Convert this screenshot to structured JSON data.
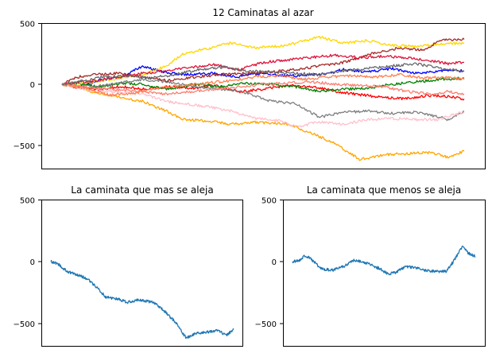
{
  "chart_data": [
    {
      "type": "line",
      "title": "12 Caminatas al azar",
      "ylim": [
        -690,
        500
      ],
      "x_range": [
        0,
        1000
      ],
      "yticks": [
        500,
        0,
        -500
      ],
      "ytick_labels": [
        "500",
        "0",
        "−500"
      ],
      "xticks_visible": false,
      "grid": false,
      "series": [
        {
          "color": "#0000ff",
          "anchors": [
            [
              0,
              0
            ],
            [
              40,
              -20
            ],
            [
              90,
              30
            ],
            [
              150,
              60
            ],
            [
              200,
              150
            ],
            [
              240,
              110
            ],
            [
              300,
              80
            ],
            [
              380,
              90
            ],
            [
              430,
              60
            ],
            [
              500,
              90
            ],
            [
              560,
              70
            ],
            [
              640,
              80
            ],
            [
              700,
              120
            ],
            [
              760,
              100
            ],
            [
              820,
              130
            ],
            [
              880,
              90
            ],
            [
              940,
              110
            ],
            [
              1000,
              110
            ]
          ]
        },
        {
          "color": "#ff0000",
          "anchors": [
            [
              0,
              0
            ],
            [
              40,
              -30
            ],
            [
              90,
              -40
            ],
            [
              150,
              -20
            ],
            [
              200,
              -40
            ],
            [
              260,
              -20
            ],
            [
              330,
              -30
            ],
            [
              380,
              -10
            ],
            [
              440,
              -60
            ],
            [
              500,
              -40
            ],
            [
              560,
              -10
            ],
            [
              640,
              -30
            ],
            [
              700,
              -70
            ],
            [
              780,
              -100
            ],
            [
              850,
              -120
            ],
            [
              920,
              -90
            ],
            [
              960,
              -100
            ],
            [
              1000,
              -120
            ]
          ]
        },
        {
          "color": "#008000",
          "anchors": [
            [
              0,
              0
            ],
            [
              40,
              10
            ],
            [
              90,
              -20
            ],
            [
              150,
              10
            ],
            [
              200,
              0
            ],
            [
              260,
              -40
            ],
            [
              330,
              0
            ],
            [
              400,
              -20
            ],
            [
              440,
              10
            ],
            [
              520,
              0
            ],
            [
              580,
              -20
            ],
            [
              640,
              -60
            ],
            [
              700,
              -40
            ],
            [
              760,
              -30
            ],
            [
              820,
              0
            ],
            [
              880,
              20
            ],
            [
              940,
              40
            ],
            [
              1000,
              50
            ]
          ]
        },
        {
          "color": "#ffd700",
          "anchors": [
            [
              0,
              0
            ],
            [
              60,
              10
            ],
            [
              120,
              40
            ],
            [
              200,
              80
            ],
            [
              260,
              150
            ],
            [
              300,
              250
            ],
            [
              360,
              290
            ],
            [
              420,
              340
            ],
            [
              480,
              300
            ],
            [
              560,
              320
            ],
            [
              640,
              390
            ],
            [
              700,
              340
            ],
            [
              760,
              360
            ],
            [
              820,
              320
            ],
            [
              880,
              310
            ],
            [
              940,
              330
            ],
            [
              1000,
              340
            ]
          ]
        },
        {
          "color": "#ffa500",
          "anchors": [
            [
              0,
              0
            ],
            [
              40,
              -20
            ],
            [
              90,
              -80
            ],
            [
              150,
              -110
            ],
            [
              200,
              -140
            ],
            [
              260,
              -220
            ],
            [
              300,
              -290
            ],
            [
              360,
              -300
            ],
            [
              420,
              -330
            ],
            [
              480,
              -310
            ],
            [
              560,
              -330
            ],
            [
              620,
              -400
            ],
            [
              680,
              -490
            ],
            [
              740,
              -620
            ],
            [
              800,
              -580
            ],
            [
              860,
              -570
            ],
            [
              920,
              -560
            ],
            [
              960,
              -600
            ],
            [
              1000,
              -550
            ]
          ]
        },
        {
          "color": "#808080",
          "anchors": [
            [
              0,
              0
            ],
            [
              60,
              -30
            ],
            [
              120,
              0
            ],
            [
              200,
              40
            ],
            [
              260,
              20
            ],
            [
              330,
              -20
            ],
            [
              400,
              -40
            ],
            [
              460,
              -70
            ],
            [
              520,
              -140
            ],
            [
              580,
              -160
            ],
            [
              640,
              -270
            ],
            [
              700,
              -230
            ],
            [
              760,
              -220
            ],
            [
              820,
              -240
            ],
            [
              880,
              -230
            ],
            [
              940,
              -270
            ],
            [
              960,
              -290
            ],
            [
              1000,
              -220
            ]
          ]
        },
        {
          "color": "#ffc0cb",
          "anchors": [
            [
              0,
              0
            ],
            [
              60,
              -40
            ],
            [
              120,
              -60
            ],
            [
              200,
              -80
            ],
            [
              260,
              -140
            ],
            [
              300,
              -160
            ],
            [
              360,
              -180
            ],
            [
              420,
              -220
            ],
            [
              480,
              -280
            ],
            [
              540,
              -300
            ],
            [
              580,
              -350
            ],
            [
              640,
              -310
            ],
            [
              700,
              -330
            ],
            [
              760,
              -290
            ],
            [
              820,
              -280
            ],
            [
              880,
              -290
            ],
            [
              940,
              -290
            ],
            [
              960,
              -260
            ],
            [
              1000,
              -230
            ]
          ]
        },
        {
          "color": "#a52a2a",
          "anchors": [
            [
              0,
              0
            ],
            [
              40,
              60
            ],
            [
              80,
              80
            ],
            [
              140,
              90
            ],
            [
              200,
              60
            ],
            [
              260,
              30
            ],
            [
              330,
              60
            ],
            [
              400,
              80
            ],
            [
              460,
              90
            ],
            [
              520,
              100
            ],
            [
              580,
              120
            ],
            [
              640,
              150
            ],
            [
              700,
              180
            ],
            [
              780,
              260
            ],
            [
              840,
              300
            ],
            [
              900,
              280
            ],
            [
              940,
              360
            ],
            [
              1000,
              370
            ]
          ]
        },
        {
          "color": "#dc143c",
          "anchors": [
            [
              0,
              0
            ],
            [
              60,
              20
            ],
            [
              120,
              50
            ],
            [
              200,
              90
            ],
            [
              260,
              110
            ],
            [
              320,
              140
            ],
            [
              380,
              160
            ],
            [
              440,
              120
            ],
            [
              500,
              180
            ],
            [
              560,
              200
            ],
            [
              620,
              220
            ],
            [
              680,
              240
            ],
            [
              740,
              220
            ],
            [
              800,
              230
            ],
            [
              860,
              220
            ],
            [
              920,
              190
            ],
            [
              960,
              170
            ],
            [
              1000,
              180
            ]
          ]
        },
        {
          "color": "#fa8072",
          "anchors": [
            [
              0,
              0
            ],
            [
              60,
              -20
            ],
            [
              120,
              -40
            ],
            [
              200,
              -60
            ],
            [
              260,
              -80
            ],
            [
              320,
              -60
            ],
            [
              380,
              -40
            ],
            [
              440,
              -20
            ],
            [
              500,
              0
            ],
            [
              560,
              10
            ],
            [
              620,
              20
            ],
            [
              680,
              0
            ],
            [
              740,
              -10
            ],
            [
              800,
              -20
            ],
            [
              860,
              -60
            ],
            [
              920,
              -80
            ],
            [
              960,
              -60
            ],
            [
              1000,
              -80
            ]
          ]
        },
        {
          "color": "#ff7f50",
          "anchors": [
            [
              0,
              0
            ],
            [
              60,
              -30
            ],
            [
              120,
              -90
            ],
            [
              180,
              -70
            ],
            [
              240,
              -30
            ],
            [
              300,
              -10
            ],
            [
              360,
              10
            ],
            [
              420,
              30
            ],
            [
              480,
              60
            ],
            [
              540,
              70
            ],
            [
              600,
              40
            ],
            [
              660,
              60
            ],
            [
              720,
              70
            ],
            [
              780,
              60
            ],
            [
              840,
              80
            ],
            [
              900,
              50
            ],
            [
              940,
              60
            ],
            [
              1000,
              40
            ]
          ]
        },
        {
          "color": "#696969",
          "anchors": [
            [
              0,
              0
            ],
            [
              60,
              30
            ],
            [
              100,
              60
            ],
            [
              160,
              70
            ],
            [
              220,
              50
            ],
            [
              280,
              80
            ],
            [
              340,
              120
            ],
            [
              400,
              140
            ],
            [
              460,
              110
            ],
            [
              520,
              100
            ],
            [
              580,
              90
            ],
            [
              640,
              80
            ],
            [
              700,
              110
            ],
            [
              760,
              130
            ],
            [
              820,
              150
            ],
            [
              880,
              170
            ],
            [
              940,
              130
            ],
            [
              1000,
              110
            ]
          ]
        }
      ]
    },
    {
      "type": "line",
      "title": "La caminata que mas se aleja",
      "ylim": [
        -690,
        500
      ],
      "x_range": [
        0,
        1000
      ],
      "yticks": [
        500,
        0,
        -500
      ],
      "ytick_labels": [
        "500",
        "0",
        "−500"
      ],
      "xticks_visible": false,
      "grid": false,
      "series": [
        {
          "color": "#1f77b4",
          "anchors": [
            [
              0,
              0
            ],
            [
              40,
              -20
            ],
            [
              90,
              -80
            ],
            [
              150,
              -110
            ],
            [
              200,
              -140
            ],
            [
              260,
              -220
            ],
            [
              300,
              -290
            ],
            [
              360,
              -300
            ],
            [
              420,
              -330
            ],
            [
              480,
              -310
            ],
            [
              560,
              -330
            ],
            [
              620,
              -400
            ],
            [
              680,
              -490
            ],
            [
              740,
              -620
            ],
            [
              800,
              -580
            ],
            [
              860,
              -570
            ],
            [
              920,
              -560
            ],
            [
              960,
              -600
            ],
            [
              1000,
              -550
            ]
          ]
        }
      ]
    },
    {
      "type": "line",
      "title": "La caminata que menos se aleja",
      "ylim": [
        -690,
        500
      ],
      "x_range": [
        0,
        1000
      ],
      "yticks": [
        500,
        0,
        -500
      ],
      "ytick_labels": [
        "500",
        "0",
        "−500"
      ],
      "xticks_visible": false,
      "grid": false,
      "series": [
        {
          "color": "#1f77b4",
          "anchors": [
            [
              0,
              0
            ],
            [
              40,
              10
            ],
            [
              70,
              50
            ],
            [
              100,
              20
            ],
            [
              160,
              -60
            ],
            [
              220,
              -70
            ],
            [
              280,
              -40
            ],
            [
              330,
              10
            ],
            [
              380,
              0
            ],
            [
              420,
              -20
            ],
            [
              480,
              -60
            ],
            [
              520,
              -100
            ],
            [
              560,
              -90
            ],
            [
              620,
              -40
            ],
            [
              680,
              -50
            ],
            [
              720,
              -70
            ],
            [
              780,
              -80
            ],
            [
              840,
              -80
            ],
            [
              880,
              0
            ],
            [
              930,
              130
            ],
            [
              960,
              70
            ],
            [
              1000,
              40
            ]
          ]
        }
      ]
    }
  ]
}
